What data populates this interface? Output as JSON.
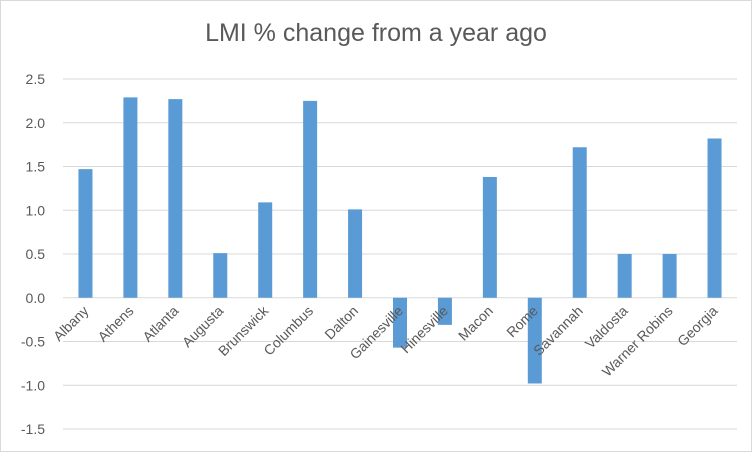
{
  "chart_data": {
    "type": "bar",
    "title": "LMI % change from a year ago",
    "xlabel": "",
    "ylabel": "",
    "categories": [
      "Albany",
      "Athens",
      "Atlanta",
      "Augusta",
      "Brunswick",
      "Columbus",
      "Dalton",
      "Gainesville",
      "Hinesville",
      "Macon",
      "Rome",
      "Savannah",
      "Valdosta",
      "Warner Robins",
      "Georgia"
    ],
    "values": [
      1.47,
      2.29,
      2.27,
      0.51,
      1.09,
      2.25,
      1.01,
      -0.57,
      -0.31,
      1.38,
      -0.98,
      1.72,
      0.5,
      0.5,
      1.82
    ],
    "ylim": [
      -1.5,
      2.5
    ],
    "yticks": [
      "2.5",
      "2.0",
      "1.5",
      "1.0",
      "0.5",
      "0.0",
      "-0.5",
      "-1.0",
      "-1.5"
    ],
    "ytick_values": [
      2.5,
      2.0,
      1.5,
      1.0,
      0.5,
      0.0,
      -0.5,
      -1.0,
      -1.5
    ],
    "grid": true,
    "legend": "none",
    "bar_color": "#5B9BD5",
    "grid_color": "#d9d9d9",
    "text_color": "#595959"
  }
}
